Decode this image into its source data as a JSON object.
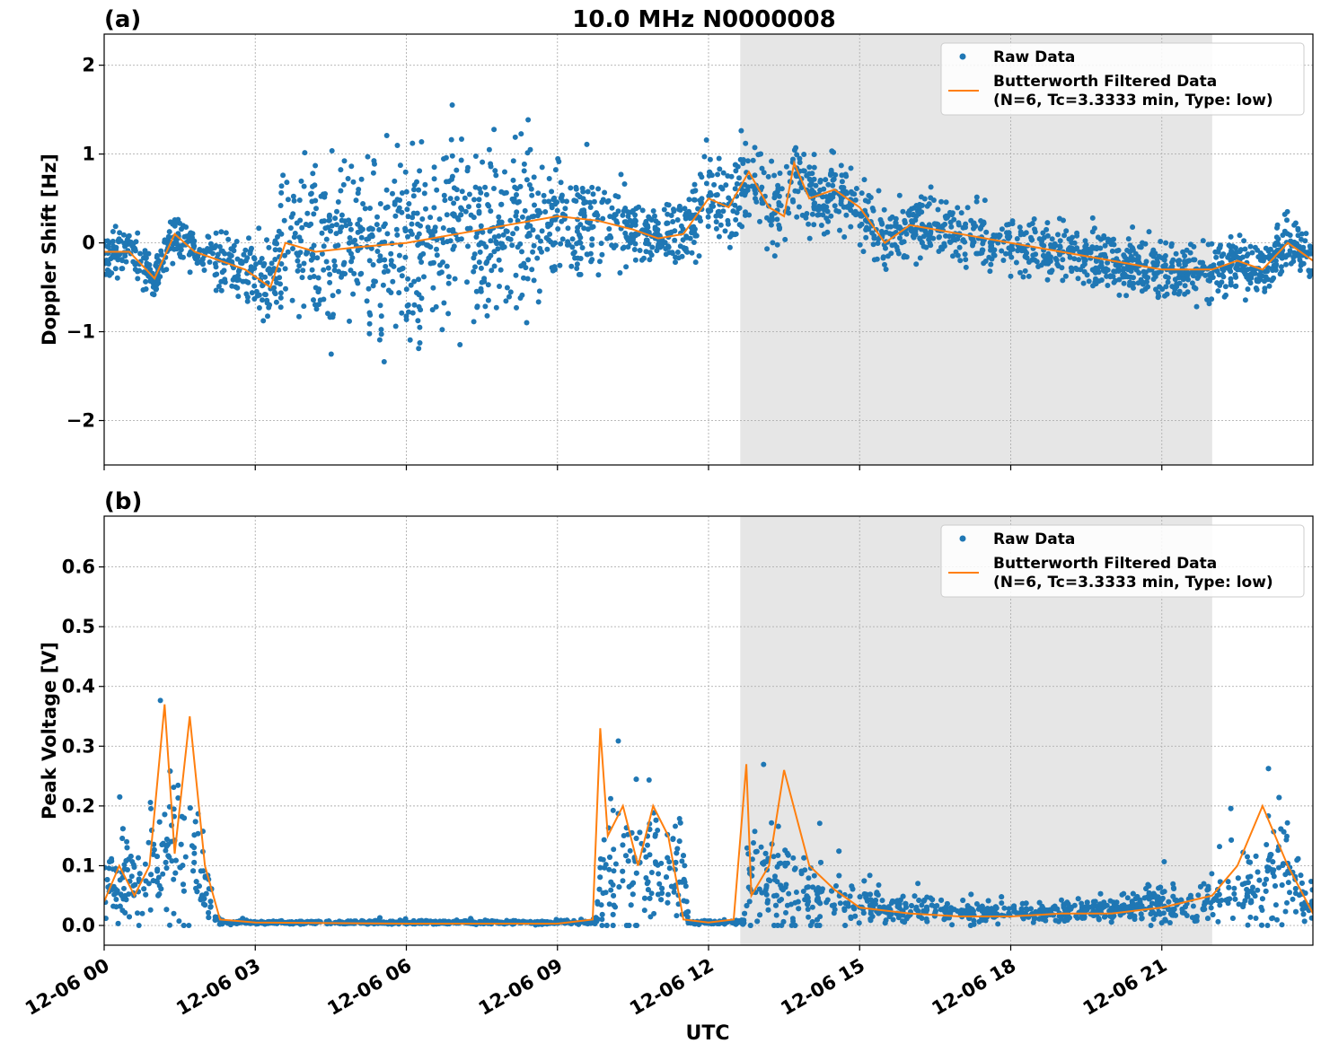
{
  "figure": {
    "title": "10.0 MHz N0000008",
    "xlabel": "UTC"
  },
  "chart_data": [
    {
      "type": "scatter",
      "panel_label": "(a)",
      "ylabel": "Doppler Shift [Hz]",
      "xlim_hours": [
        0,
        24
      ],
      "ylim": [
        -2.5,
        2.35
      ],
      "yticks": [
        -2,
        -1,
        0,
        1,
        2
      ],
      "ytick_labels": [
        "−2",
        "−1",
        "0",
        "1",
        "2"
      ],
      "x_ticks_hours": [
        0,
        3,
        6,
        9,
        12,
        15,
        18,
        21
      ],
      "x_tick_labels": [
        "12-06 00",
        "12-06 03",
        "12-06 06",
        "12-06 09",
        "12-06 12",
        "12-06 15",
        "12-06 18",
        "12-06 21"
      ],
      "shaded_region_hours": [
        12.63,
        22.0
      ],
      "grid": true,
      "legend": {
        "position": "upper-right",
        "entries": [
          "Raw Data",
          "Butterworth Filtered Data",
          "(N=6, Tc=3.3333 min, Type: low)"
        ]
      },
      "colors": {
        "raw": "#1f77b4",
        "filtered": "#ff7f0e",
        "shade": "#e6e6e6"
      },
      "series": [
        {
          "name": "Butterworth Filtered Data",
          "kind": "line",
          "x_hours": [
            0,
            0.5,
            1.0,
            1.4,
            1.8,
            2.3,
            2.8,
            3.3,
            3.6,
            4.2,
            5.0,
            6.0,
            7.0,
            8.0,
            9.0,
            9.8,
            10.5,
            11.0,
            11.5,
            12.0,
            12.4,
            12.8,
            13.2,
            13.5,
            13.7,
            14.0,
            14.5,
            15.0,
            15.5,
            16.0,
            17.0,
            18.0,
            19.0,
            20.0,
            21.0,
            21.5,
            22.0,
            22.5,
            23.0,
            23.5,
            24.0
          ],
          "values": [
            -0.1,
            -0.1,
            -0.4,
            0.1,
            -0.1,
            -0.2,
            -0.3,
            -0.5,
            0.0,
            -0.1,
            -0.05,
            0.0,
            0.1,
            0.2,
            0.3,
            0.25,
            0.15,
            0.05,
            0.1,
            0.5,
            0.4,
            0.8,
            0.4,
            0.3,
            0.9,
            0.5,
            0.6,
            0.4,
            0.0,
            0.2,
            0.1,
            0.0,
            -0.1,
            -0.2,
            -0.3,
            -0.3,
            -0.3,
            -0.2,
            -0.3,
            0.0,
            -0.2
          ]
        },
        {
          "name": "Raw Data",
          "kind": "scatter",
          "spread_hours": [
            0,
            1.5,
            2.8,
            3.5,
            5.5,
            7.5,
            9.5,
            11.0,
            12.0,
            13.5,
            15.5,
            18.0,
            21.0,
            24.0
          ],
          "spread_hz": [
            0.25,
            0.25,
            0.35,
            0.8,
            1.0,
            1.0,
            0.7,
            0.25,
            0.5,
            0.5,
            0.35,
            0.3,
            0.35,
            0.3
          ]
        }
      ]
    },
    {
      "type": "scatter",
      "panel_label": "(b)",
      "ylabel": "Peak Voltage [V]",
      "xlim_hours": [
        0,
        24
      ],
      "ylim": [
        -0.033,
        0.685
      ],
      "yticks": [
        0.0,
        0.1,
        0.2,
        0.3,
        0.4,
        0.5,
        0.6
      ],
      "ytick_labels": [
        "0.0",
        "0.1",
        "0.2",
        "0.3",
        "0.4",
        "0.5",
        "0.6"
      ],
      "x_ticks_hours": [
        0,
        3,
        6,
        9,
        12,
        15,
        18,
        21
      ],
      "x_tick_labels": [
        "12-06 00",
        "12-06 03",
        "12-06 06",
        "12-06 09",
        "12-06 12",
        "12-06 15",
        "12-06 18",
        "12-06 21"
      ],
      "shaded_region_hours": [
        12.63,
        22.0
      ],
      "grid": true,
      "legend": {
        "position": "upper-right",
        "entries": [
          "Raw Data",
          "Butterworth Filtered Data",
          "(N=6, Tc=3.3333 min, Type: low)"
        ]
      },
      "colors": {
        "raw": "#1f77b4",
        "filtered": "#ff7f0e",
        "shade": "#e6e6e6"
      },
      "series": [
        {
          "name": "Butterworth Filtered Data",
          "kind": "line",
          "x_hours": [
            0,
            0.3,
            0.6,
            0.9,
            1.2,
            1.4,
            1.7,
            2.0,
            2.3,
            3.0,
            6.0,
            9.0,
            9.7,
            9.85,
            10.0,
            10.3,
            10.6,
            10.9,
            11.2,
            11.5,
            12.0,
            12.5,
            12.75,
            12.85,
            13.2,
            13.5,
            14.0,
            14.5,
            15.0,
            16.0,
            17.0,
            18.0,
            19.0,
            20.0,
            21.0,
            22.0,
            22.5,
            23.0,
            23.5,
            24.0
          ],
          "values": [
            0.04,
            0.1,
            0.05,
            0.1,
            0.37,
            0.12,
            0.35,
            0.1,
            0.01,
            0.005,
            0.003,
            0.003,
            0.01,
            0.33,
            0.15,
            0.2,
            0.1,
            0.2,
            0.15,
            0.01,
            0.005,
            0.01,
            0.27,
            0.05,
            0.1,
            0.26,
            0.1,
            0.06,
            0.03,
            0.02,
            0.015,
            0.015,
            0.02,
            0.02,
            0.03,
            0.05,
            0.1,
            0.2,
            0.1,
            0.02
          ]
        },
        {
          "name": "Raw Data",
          "kind": "scatter",
          "level_hours": [
            0,
            0.8,
            1.2,
            1.7,
            2.1,
            2.3,
            9.75,
            9.9,
            11.5,
            11.6,
            12.7,
            12.8,
            13.5,
            15.0,
            17.0,
            20.0,
            22.5,
            23.3,
            24.0
          ],
          "level_v": [
            0.07,
            0.08,
            0.13,
            0.12,
            0.04,
            0.005,
            0.005,
            0.1,
            0.09,
            0.005,
            0.005,
            0.08,
            0.07,
            0.035,
            0.02,
            0.025,
            0.05,
            0.09,
            0.03
          ],
          "spread_v": [
            0.08,
            0.12,
            0.2,
            0.2,
            0.05,
            0.004,
            0.004,
            0.2,
            0.15,
            0.004,
            0.004,
            0.15,
            0.12,
            0.04,
            0.025,
            0.025,
            0.08,
            0.15,
            0.05
          ]
        }
      ]
    }
  ]
}
